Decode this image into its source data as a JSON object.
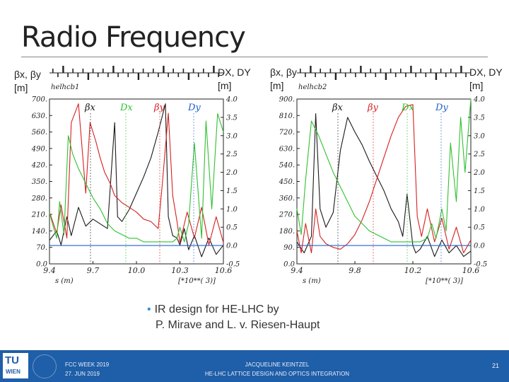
{
  "slide": {
    "title": "Radio Frequency",
    "left_axis_label": [
      "βx, βy",
      "[m]"
    ],
    "right_axis_label": [
      "DX, DY",
      "[m]"
    ],
    "bullet": [
      "IR design for HE-LHC by",
      "P. Mirave and L. v. Riesen-Haupt"
    ]
  },
  "footer": {
    "logo_top": "TU",
    "logo_bottom": "WIEN",
    "event": "FCC WEEK 2019",
    "date": "27. JUN 2019",
    "author": "JACQUELINE KEINTZEL",
    "talk": "HE-LHC LATTICE DESIGN AND OPTICS INTEGRATION",
    "page": "21",
    "bar_color": "#1f5ea8"
  },
  "chart_data": [
    {
      "type": "line",
      "tag": "helhcb1",
      "xlabel": "s (m)",
      "x_multiplier": "[*10**( 3)]",
      "xlim": [
        9.4,
        10.6
      ],
      "x_ticks": [
        "9.4",
        "9.7",
        "10.0",
        "10.3",
        "10.6"
      ],
      "ylim_left": [
        0,
        700
      ],
      "y_ticks_left": [
        "0.0",
        "70.",
        "140.",
        "210.",
        "280.",
        "350.",
        "420.",
        "490.",
        "560.",
        "630.",
        "700."
      ],
      "ylim_right": [
        -0.5,
        4.0
      ],
      "y_ticks_right": [
        "-0.5",
        "0.0",
        "0.5",
        "1.0",
        "1.5",
        "2.0",
        "2.5",
        "3.0",
        "3.5",
        "4.0"
      ],
      "legend": [
        "βx",
        "Dx",
        "βy",
        "Dy"
      ],
      "series": [
        {
          "name": "βx",
          "color": "#1a1a1a",
          "axis": "left",
          "x": [
            9.4,
            9.45,
            9.48,
            9.52,
            9.55,
            9.6,
            9.65,
            9.7,
            9.75,
            9.8,
            9.85,
            9.87,
            9.9,
            9.95,
            10.0,
            10.05,
            10.1,
            10.15,
            10.2,
            10.22,
            10.25,
            10.28,
            10.3,
            10.33,
            10.36,
            10.4,
            10.45,
            10.5,
            10.55,
            10.6
          ],
          "y": [
            100,
            140,
            80,
            200,
            120,
            240,
            160,
            190,
            170,
            150,
            600,
            200,
            180,
            230,
            300,
            370,
            450,
            560,
            680,
            200,
            120,
            110,
            80,
            150,
            60,
            120,
            30,
            110,
            40,
            80
          ]
        },
        {
          "name": "βy",
          "color": "#d62020",
          "axis": "left",
          "x": [
            9.4,
            9.45,
            9.48,
            9.52,
            9.55,
            9.6,
            9.65,
            9.68,
            9.72,
            9.75,
            9.78,
            9.82,
            9.85,
            9.9,
            9.95,
            10.0,
            10.05,
            10.1,
            10.15,
            10.18,
            10.22,
            10.25,
            10.28,
            10.3,
            10.35,
            10.4,
            10.45,
            10.5,
            10.55,
            10.6
          ],
          "y": [
            220,
            130,
            250,
            110,
            600,
            680,
            300,
            600,
            520,
            450,
            390,
            340,
            290,
            260,
            240,
            220,
            190,
            180,
            150,
            350,
            640,
            290,
            180,
            90,
            220,
            110,
            240,
            80,
            200,
            90
          ]
        },
        {
          "name": "Dx",
          "color": "#30c030",
          "axis": "right",
          "x": [
            9.4,
            9.42,
            9.45,
            9.47,
            9.5,
            9.53,
            9.56,
            9.6,
            9.65,
            9.7,
            9.75,
            9.8,
            9.85,
            9.9,
            9.95,
            10.0,
            10.05,
            10.1,
            10.15,
            10.2,
            10.25,
            10.28,
            10.3,
            10.33,
            10.36,
            10.4,
            10.45,
            10.48,
            10.52,
            10.56,
            10.6
          ],
          "y": [
            0.9,
            0.6,
            0.2,
            1.2,
            0.3,
            3.0,
            2.5,
            2.1,
            1.7,
            1.3,
            1.0,
            0.6,
            0.4,
            0.3,
            0.2,
            0.2,
            0.1,
            0.1,
            0.1,
            0.1,
            0.1,
            0.2,
            0.5,
            0.1,
            0.6,
            2.8,
            0.2,
            3.4,
            1.0,
            3.6,
            3.1
          ]
        },
        {
          "name": "Dy",
          "color": "#2060d0",
          "axis": "right",
          "x": [
            9.4,
            9.5,
            9.6,
            9.7,
            9.8,
            9.9,
            10.0,
            10.1,
            10.2,
            10.3,
            10.4,
            10.5,
            10.6
          ],
          "y": [
            0.0,
            0.0,
            0.0,
            0.0,
            0.0,
            0.0,
            0.0,
            0.0,
            0.0,
            0.0,
            0.0,
            0.0,
            0.0
          ]
        }
      ]
    },
    {
      "type": "line",
      "tag": "helhcb2",
      "xlabel": "s (m)",
      "x_multiplier": "[*10**( 3)]",
      "xlim": [
        9.4,
        10.6
      ],
      "x_ticks": [
        "9.4",
        "9.8",
        "10.2",
        "10.6"
      ],
      "ylim_left": [
        0,
        900
      ],
      "y_ticks_left": [
        "0.0",
        "90.",
        "180.",
        "270.",
        "360.",
        "450.",
        "540.",
        "630.",
        "720.",
        "810.",
        "900."
      ],
      "ylim_right": [
        -0.5,
        4.0
      ],
      "y_ticks_right": [
        "-0.5",
        "0.0",
        "0.5",
        "1.0",
        "1.5",
        "2.0",
        "2.5",
        "3.0",
        "3.5",
        "4.0"
      ],
      "legend": [
        "βx",
        "βy",
        "Dx",
        "Dy"
      ],
      "series": [
        {
          "name": "βx",
          "color": "#1a1a1a",
          "axis": "left",
          "x": [
            9.4,
            9.45,
            9.5,
            9.53,
            9.56,
            9.6,
            9.65,
            9.7,
            9.75,
            9.8,
            9.85,
            9.9,
            9.95,
            10.0,
            10.05,
            10.1,
            10.13,
            10.16,
            10.2,
            10.22,
            10.25,
            10.3,
            10.35,
            10.4,
            10.45,
            10.5,
            10.55,
            10.6
          ],
          "y": [
            120,
            60,
            150,
            820,
            300,
            200,
            280,
            620,
            800,
            720,
            650,
            560,
            480,
            400,
            300,
            230,
            150,
            380,
            100,
            60,
            80,
            150,
            40,
            130,
            60,
            100,
            40,
            70
          ]
        },
        {
          "name": "βy",
          "color": "#d62020",
          "axis": "left",
          "x": [
            9.4,
            9.43,
            9.46,
            9.5,
            9.53,
            9.56,
            9.6,
            9.65,
            9.7,
            9.75,
            9.8,
            9.85,
            9.9,
            9.95,
            10.0,
            10.05,
            10.1,
            10.15,
            10.2,
            10.23,
            10.26,
            10.3,
            10.35,
            10.4,
            10.45,
            10.5,
            10.55,
            10.6
          ],
          "y": [
            180,
            60,
            220,
            60,
            300,
            150,
            110,
            90,
            80,
            110,
            160,
            240,
            340,
            460,
            580,
            700,
            800,
            860,
            870,
            260,
            150,
            300,
            120,
            250,
            80,
            200,
            60,
            130
          ]
        },
        {
          "name": "Dx",
          "color": "#30c030",
          "axis": "right",
          "x": [
            9.4,
            9.43,
            9.46,
            9.5,
            9.55,
            9.6,
            9.65,
            9.7,
            9.75,
            9.8,
            9.85,
            9.9,
            9.95,
            10.0,
            10.05,
            10.1,
            10.15,
            10.2,
            10.25,
            10.3,
            10.33,
            10.36,
            10.4,
            10.43,
            10.46,
            10.5,
            10.53,
            10.56,
            10.6
          ],
          "y": [
            1.0,
            0.3,
            1.8,
            3.4,
            3.0,
            2.5,
            2.0,
            1.6,
            1.2,
            0.8,
            0.6,
            0.4,
            0.3,
            0.2,
            0.1,
            0.1,
            0.1,
            0.1,
            0.1,
            0.2,
            0.6,
            0.2,
            1.0,
            0.4,
            2.8,
            1.2,
            3.5,
            2.0,
            4.0
          ]
        },
        {
          "name": "Dy",
          "color": "#2060d0",
          "axis": "right",
          "x": [
            9.4,
            9.5,
            9.6,
            9.7,
            9.8,
            9.9,
            10.0,
            10.1,
            10.2,
            10.3,
            10.4,
            10.5,
            10.6
          ],
          "y": [
            0.0,
            0.0,
            0.0,
            0.0,
            0.0,
            0.0,
            0.0,
            0.0,
            0.0,
            0.0,
            0.0,
            0.0,
            0.0
          ]
        }
      ]
    }
  ]
}
